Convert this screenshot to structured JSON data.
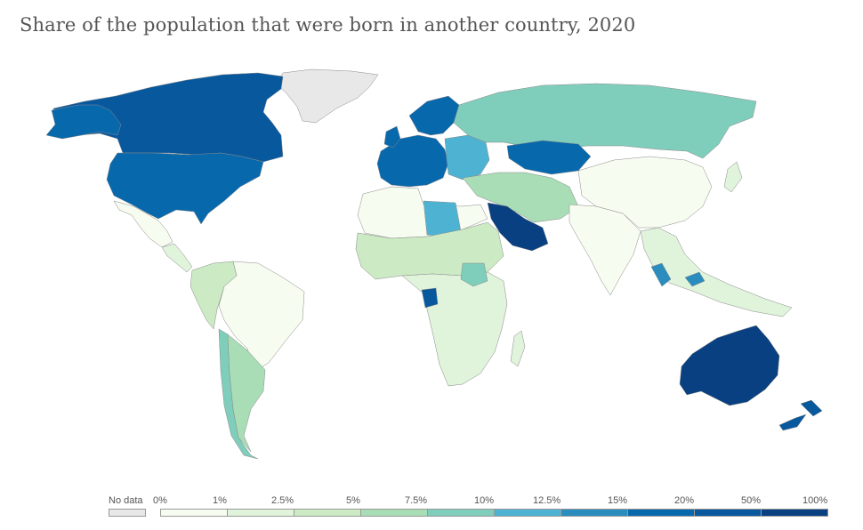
{
  "title": "Share of the population that were born in another country, 2020",
  "legend": {
    "no_data_label": "No data",
    "no_data_color": "#e8e8e8",
    "ticks": [
      "0%",
      "1%",
      "2.5%",
      "5%",
      "7.5%",
      "10%",
      "12.5%",
      "15%",
      "20%",
      "50%",
      "100%"
    ],
    "bins": [
      {
        "range": "0%-1%",
        "color": "#f7fcf0"
      },
      {
        "range": "1%-2.5%",
        "color": "#e0f3db"
      },
      {
        "range": "2.5%-5%",
        "color": "#ccebc5"
      },
      {
        "range": "5%-7.5%",
        "color": "#a8ddb5"
      },
      {
        "range": "7.5%-10%",
        "color": "#7fcdbb"
      },
      {
        "range": "10%-12.5%",
        "color": "#4eb3d3"
      },
      {
        "range": "12.5%-15%",
        "color": "#2b8cbe"
      },
      {
        "range": "15%-20%",
        "color": "#0868ac"
      },
      {
        "range": "20%-50%",
        "color": "#08589e"
      },
      {
        "range": "50%-100%",
        "color": "#084081"
      }
    ]
  },
  "regions": [
    {
      "name": "Canada",
      "bin": 8
    },
    {
      "name": "United States",
      "bin": 7
    },
    {
      "name": "Greenland",
      "bin": -1
    },
    {
      "name": "Mexico",
      "bin": 0
    },
    {
      "name": "Central America",
      "bin": 1
    },
    {
      "name": "Brazil",
      "bin": 0
    },
    {
      "name": "Andean countries",
      "bin": 2
    },
    {
      "name": "Argentina",
      "bin": 3
    },
    {
      "name": "Chile",
      "bin": 4
    },
    {
      "name": "Western Europe",
      "bin": 7
    },
    {
      "name": "Scandinavia",
      "bin": 7
    },
    {
      "name": "Eastern Europe",
      "bin": 5
    },
    {
      "name": "Russia",
      "bin": 4
    },
    {
      "name": "Kazakhstan",
      "bin": 7
    },
    {
      "name": "Middle East",
      "bin": 3
    },
    {
      "name": "Saudi Arabia",
      "bin": 9
    },
    {
      "name": "Libya",
      "bin": 5
    },
    {
      "name": "North Africa",
      "bin": 0
    },
    {
      "name": "Sahel",
      "bin": 2
    },
    {
      "name": "Central & Southern Africa",
      "bin": 1
    },
    {
      "name": "South Sudan",
      "bin": 4
    },
    {
      "name": "Gabon",
      "bin": 8
    },
    {
      "name": "South Asia",
      "bin": 0
    },
    {
      "name": "China",
      "bin": 0
    },
    {
      "name": "Southeast Asia",
      "bin": 1
    },
    {
      "name": "Malaysia",
      "bin": 6
    },
    {
      "name": "Australia",
      "bin": 9
    },
    {
      "name": "New Zealand",
      "bin": 8
    }
  ]
}
